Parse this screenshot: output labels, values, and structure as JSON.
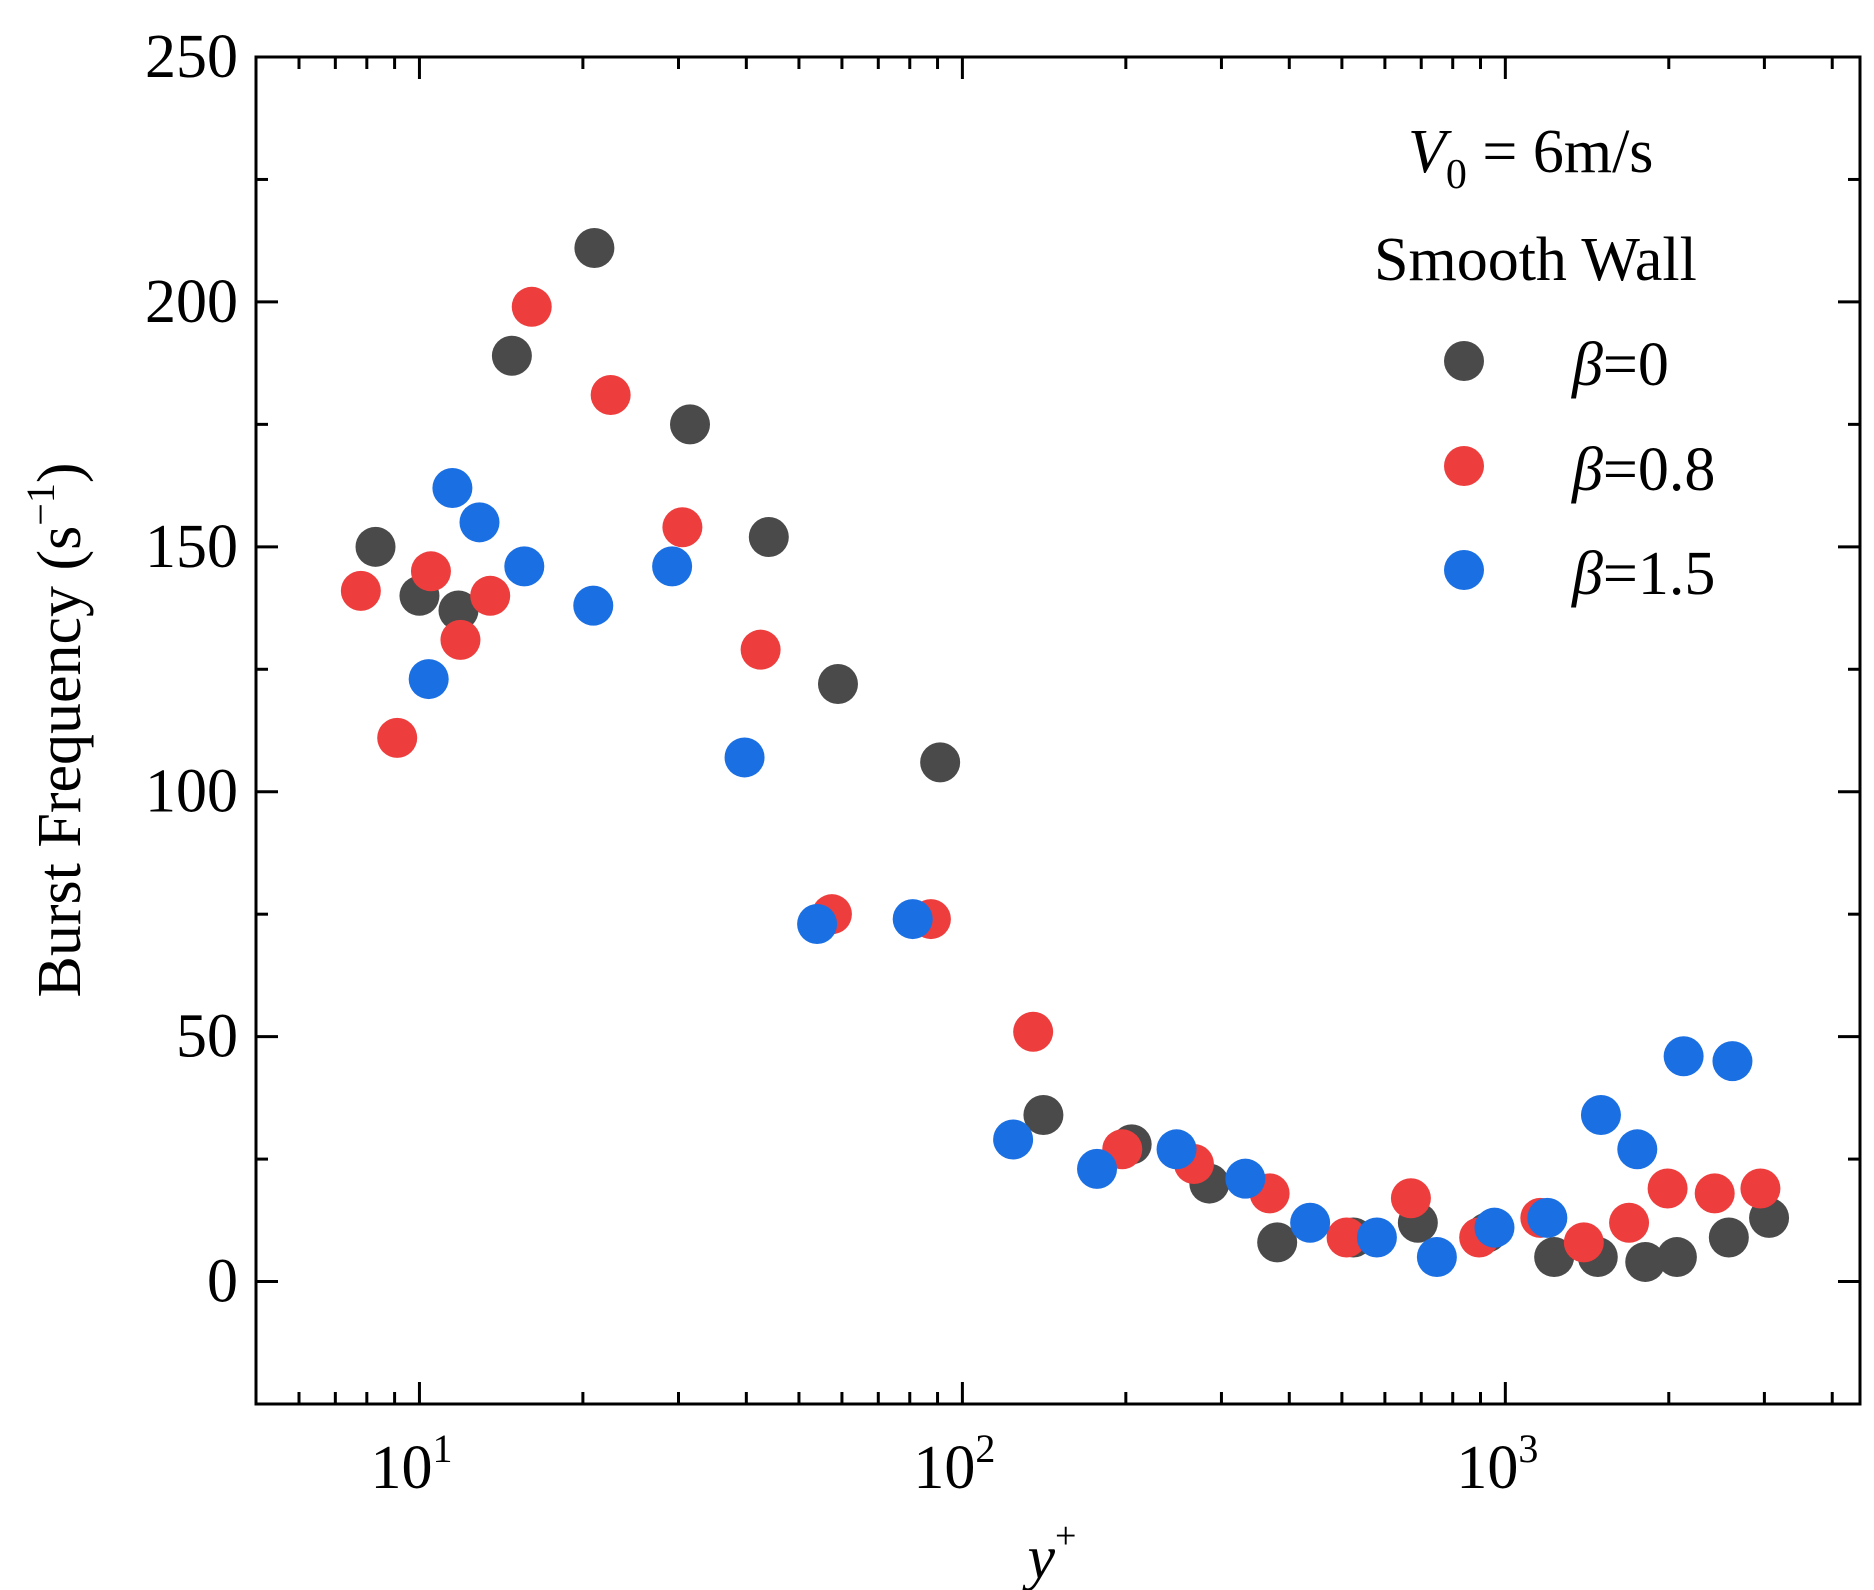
{
  "chart_data": {
    "type": "scatter",
    "xscale": "log",
    "xlim": [
      5,
      4500
    ],
    "ylim": [
      -25,
      250
    ],
    "yticks": [
      0,
      50,
      100,
      150,
      200,
      250
    ],
    "ytick_labels": [
      "0",
      "50",
      "100",
      "150",
      "200",
      "250"
    ],
    "xtick_bases": [
      "10",
      "10",
      "10"
    ],
    "xtick_exps": [
      "1",
      "2",
      "3"
    ],
    "xtick_values": [
      10,
      100,
      1000
    ],
    "xlabel_base": "y",
    "xlabel_sup": "+",
    "ylabel_main": "Burst Frequency (s",
    "ylabel_sup": "−1",
    "ylabel_close": ")",
    "annotation": {
      "v_symbol": "V",
      "v_sub": "0",
      "v_rest": " = 6m/s",
      "line2": "Smooth Wall"
    },
    "legend_position": "top-right",
    "series": [
      {
        "name_symbol": "β",
        "name_value": "=0",
        "color": "#4a4a4a",
        "points": [
          [
            8.3,
            150
          ],
          [
            10,
            140
          ],
          [
            11.8,
            137
          ],
          [
            14.8,
            189
          ],
          [
            21,
            211
          ],
          [
            31.5,
            175
          ],
          [
            44,
            152
          ],
          [
            59,
            122
          ],
          [
            91,
            106
          ],
          [
            141,
            34
          ],
          [
            205,
            28
          ],
          [
            285,
            20
          ],
          [
            380,
            8
          ],
          [
            525,
            9
          ],
          [
            690,
            12
          ],
          [
            925,
            10
          ],
          [
            1230,
            5
          ],
          [
            1480,
            5
          ],
          [
            1810,
            4
          ],
          [
            2070,
            5
          ],
          [
            2580,
            9
          ],
          [
            3060,
            13
          ]
        ]
      },
      {
        "name_symbol": "β",
        "name_value": "=0.8",
        "color": "#ee3d3d",
        "points": [
          [
            7.8,
            141
          ],
          [
            9.1,
            111
          ],
          [
            10.5,
            145
          ],
          [
            11.9,
            131
          ],
          [
            13.5,
            140
          ],
          [
            16.1,
            199
          ],
          [
            22.5,
            181
          ],
          [
            30.5,
            154
          ],
          [
            42.5,
            129
          ],
          [
            57.5,
            75
          ],
          [
            87.5,
            74
          ],
          [
            135,
            51
          ],
          [
            197,
            27
          ],
          [
            267,
            24
          ],
          [
            368,
            18
          ],
          [
            510,
            9
          ],
          [
            670,
            17
          ],
          [
            895,
            9
          ],
          [
            1160,
            13
          ],
          [
            1395,
            8
          ],
          [
            1690,
            12
          ],
          [
            1990,
            19
          ],
          [
            2430,
            18
          ],
          [
            2950,
            19
          ]
        ]
      },
      {
        "name_symbol": "β",
        "name_value": "=1.5",
        "color": "#1a6fe3",
        "points": [
          [
            10.4,
            123
          ],
          [
            11.5,
            162
          ],
          [
            12.9,
            155
          ],
          [
            15.6,
            146
          ],
          [
            20.9,
            138
          ],
          [
            29.2,
            146
          ],
          [
            39.7,
            107
          ],
          [
            54,
            73
          ],
          [
            81,
            74
          ],
          [
            124,
            29
          ],
          [
            177,
            23
          ],
          [
            248,
            27
          ],
          [
            332,
            21
          ],
          [
            437,
            12
          ],
          [
            580,
            9
          ],
          [
            748,
            5
          ],
          [
            955,
            11
          ],
          [
            1195,
            13
          ],
          [
            1500,
            34
          ],
          [
            1750,
            27
          ],
          [
            2130,
            46
          ],
          [
            2620,
            45
          ]
        ]
      }
    ]
  }
}
